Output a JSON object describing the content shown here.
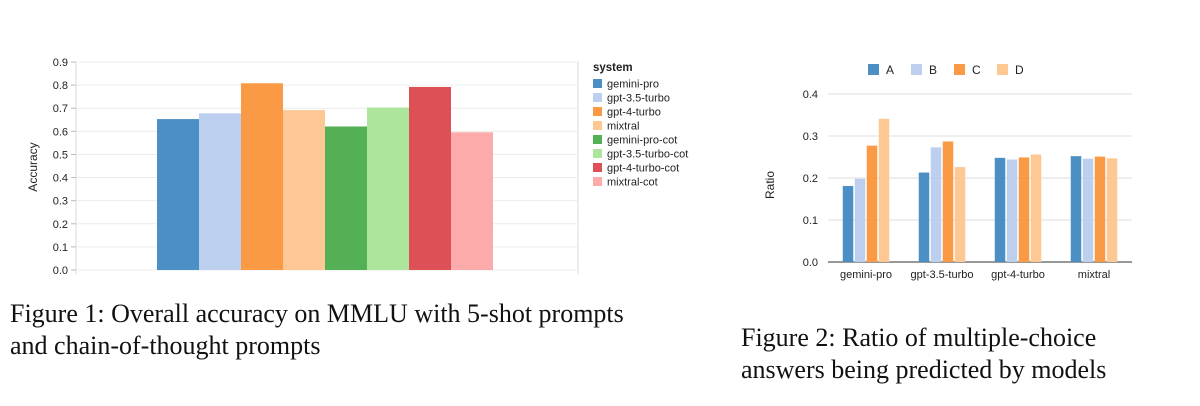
{
  "chart_data": [
    {
      "type": "bar",
      "ylabel": "Accuracy",
      "ylim": [
        0,
        0.9
      ],
      "yticks": [
        "0.0",
        "0.1",
        "0.2",
        "0.3",
        "0.4",
        "0.5",
        "0.6",
        "0.7",
        "0.8",
        "0.9"
      ],
      "grid": true,
      "legend_title": "system",
      "legend_position": "right",
      "categories": [
        "gemini-pro",
        "gpt-3.5-turbo",
        "gpt-4-turbo",
        "mixtral",
        "gemini-pro-cot",
        "gpt-3.5-turbo-cot",
        "gpt-4-turbo-cot",
        "mixtral-cot"
      ],
      "values": [
        0.653,
        0.678,
        0.808,
        0.692,
        0.621,
        0.703,
        0.792,
        0.596
      ],
      "colors": [
        "#4c8fc4",
        "#bccfee",
        "#fb9a45",
        "#fdc893",
        "#54b054",
        "#ade59c",
        "#dd5055",
        "#fdaaaa"
      ],
      "caption": [
        "Figure 1: Overall accuracy on MMLU with 5-shot prompts",
        "and chain-of-thought prompts"
      ]
    },
    {
      "type": "bar",
      "ylabel": "Ratio",
      "ylim": [
        0,
        0.4
      ],
      "yticks": [
        "0.0",
        "0.1",
        "0.2",
        "0.3",
        "0.4"
      ],
      "grid": true,
      "legend_position": "top",
      "categories": [
        "gemini-pro",
        "gpt-3.5-turbo",
        "gpt-4-turbo",
        "mixtral"
      ],
      "series": [
        {
          "name": "A",
          "color": "#4c8fc4",
          "values": [
            0.181,
            0.213,
            0.248,
            0.252
          ]
        },
        {
          "name": "B",
          "color": "#bccfee",
          "values": [
            0.198,
            0.273,
            0.244,
            0.246
          ]
        },
        {
          "name": "C",
          "color": "#fb9a45",
          "values": [
            0.277,
            0.287,
            0.249,
            0.251
          ]
        },
        {
          "name": "D",
          "color": "#fdc893",
          "values": [
            0.341,
            0.226,
            0.256,
            0.247
          ]
        }
      ],
      "caption": [
        "Figure 2: Ratio of multiple-choice",
        "answers being predicted by models"
      ]
    }
  ]
}
